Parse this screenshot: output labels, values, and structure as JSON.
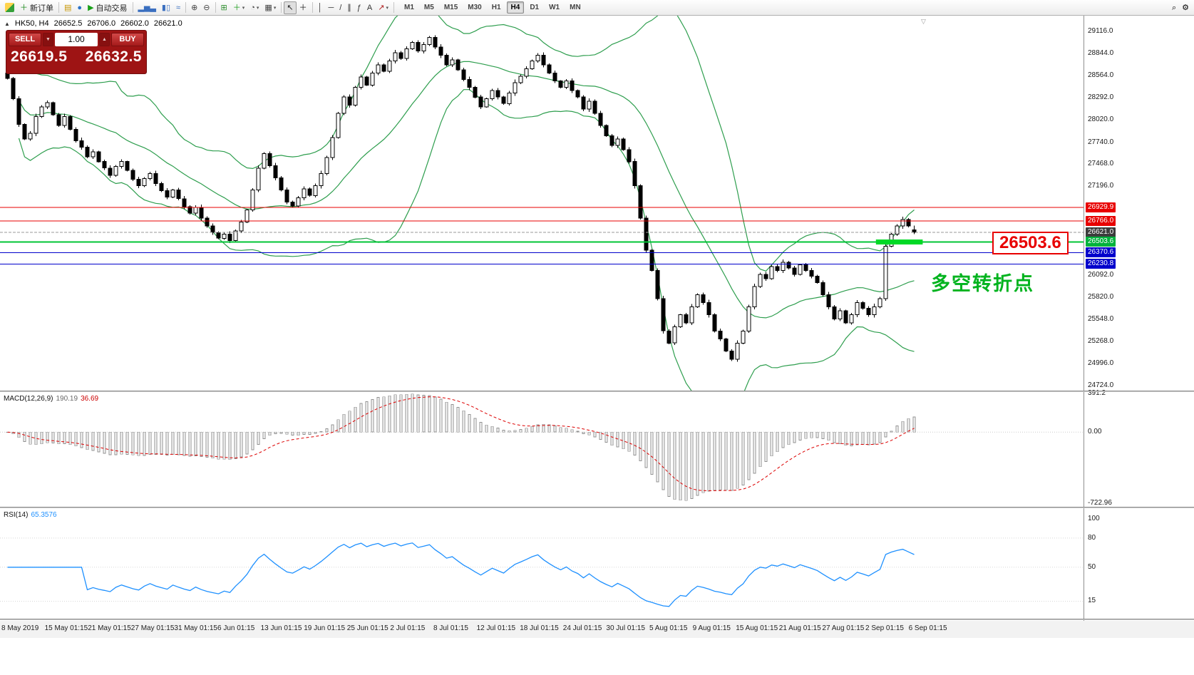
{
  "toolbar": {
    "items": [
      {
        "type": "logo",
        "name": "app-icon"
      },
      {
        "name": "new-order-button",
        "glyph": "＋",
        "color": "#1d8a1d",
        "label": "新订单"
      },
      {
        "type": "sep"
      },
      {
        "name": "metaeditor-icon",
        "glyph": "▤",
        "color": "#c89600"
      },
      {
        "name": "community-icon",
        "glyph": "●",
        "color": "#2a72c8"
      },
      {
        "name": "autotrading-button",
        "glyph": "▶",
        "color": "#18a018",
        "label": "自动交易"
      },
      {
        "type": "sep"
      },
      {
        "name": "bar-chart-icon",
        "glyph": "▂▅▃",
        "color": "#3a6fc0"
      },
      {
        "name": "candlestick-chart-icon",
        "glyph": "▮▯",
        "color": "#3a6fc0"
      },
      {
        "name": "line-chart-icon",
        "glyph": "≈",
        "color": "#3a6fc0"
      },
      {
        "type": "sep"
      },
      {
        "name": "zoom-in-icon",
        "glyph": "⊕",
        "color": "#444444"
      },
      {
        "name": "zoom-out-icon",
        "glyph": "⊖",
        "color": "#444444"
      },
      {
        "type": "sep"
      },
      {
        "name": "tile-windows-icon",
        "glyph": "⊞",
        "color": "#2f8f2f"
      },
      {
        "name": "indicators-button",
        "glyph": "＋",
        "color": "#1f9f1f",
        "caret": true
      },
      {
        "name": "periods-button",
        "glyph": "◔",
        "color": "#444444",
        "caret": true
      },
      {
        "name": "templates-button",
        "glyph": "▦",
        "color": "#444444",
        "caret": true
      },
      {
        "type": "sep"
      },
      {
        "name": "cursor-button",
        "glyph": "↖",
        "color": "#222222",
        "active": true
      },
      {
        "name": "crosshair-button",
        "glyph": "＋",
        "color": "#222222"
      },
      {
        "type": "sep"
      },
      {
        "name": "vertical-line-button",
        "glyph": "│",
        "color": "#333333"
      },
      {
        "name": "horizontal-line-button",
        "glyph": "─",
        "color": "#333333"
      },
      {
        "name": "trendline-button",
        "glyph": "/",
        "color": "#333333"
      },
      {
        "name": "channel-button",
        "glyph": "∥",
        "color": "#333333"
      },
      {
        "name": "fibonacci-button",
        "glyph": "ƒ",
        "color": "#333333"
      },
      {
        "name": "text-button",
        "glyph": "A",
        "color": "#333333"
      },
      {
        "name": "arrows-button",
        "glyph": "↗",
        "color": "#b22222",
        "caret": true
      },
      {
        "type": "sep"
      }
    ],
    "timeframes": [
      "M1",
      "M5",
      "M15",
      "M30",
      "H1",
      "H4",
      "D1",
      "W1",
      "MN"
    ],
    "active_timeframe": "H4",
    "right_items": [
      {
        "name": "search-icon",
        "glyph": "⌕"
      },
      {
        "name": "settings-icon",
        "glyph": "⚙"
      }
    ]
  },
  "icons": {
    "collapse_panel": "▲",
    "volume_down": "▼",
    "volume_up": "▲",
    "chart_shift": "▽"
  },
  "chart": {
    "symbol": "HK50, H4",
    "open": "26652.5",
    "high": "26706.0",
    "low": "26602.0",
    "close": "26621.0",
    "price_axis_labels": [
      {
        "text": "29116.0",
        "value": 29116.0
      },
      {
        "text": "28844.0",
        "value": 28844.0
      },
      {
        "text": "28564.0",
        "value": 28564.0
      },
      {
        "text": "28292.0",
        "value": 28292.0
      },
      {
        "text": "28020.0",
        "value": 28020.0
      },
      {
        "text": "27740.0",
        "value": 27740.0
      },
      {
        "text": "27468.0",
        "value": 27468.0
      },
      {
        "text": "27196.0",
        "value": 27196.0
      },
      {
        "text": "26092.0",
        "value": 26092.0
      },
      {
        "text": "25820.0",
        "value": 25820.0
      },
      {
        "text": "25548.0",
        "value": 25548.0
      },
      {
        "text": "25268.0",
        "value": 25268.0
      },
      {
        "text": "24996.0",
        "value": 24996.0
      },
      {
        "text": "24724.0",
        "value": 24724.0
      }
    ],
    "tags": [
      {
        "text": "26929.9",
        "value": 26929.9,
        "bg": "#e80000"
      },
      {
        "text": "26766.0",
        "value": 26766.0,
        "bg": "#e80000"
      },
      {
        "text": "26621.0",
        "value": 26621.0,
        "bg": "#3c3c3c"
      },
      {
        "text": "26503.6",
        "value": 26503.6,
        "bg": "#00b33c"
      },
      {
        "text": "26370.6",
        "value": 26370.6,
        "bg": "#0000cc"
      },
      {
        "text": "26230.8",
        "value": 26230.8,
        "bg": "#0000cc"
      }
    ],
    "levels": [
      {
        "name": "resistance-line-1",
        "value": 26929.9,
        "color": "#e80000",
        "style": "solid",
        "width": 1
      },
      {
        "name": "resistance-line-2",
        "value": 26766.0,
        "color": "#e80000",
        "style": "solid",
        "width": 1
      },
      {
        "name": "current-price-line",
        "value": 26621.0,
        "color": "#9a9a9a",
        "style": "dash",
        "width": 1
      },
      {
        "name": "key-level-line",
        "value": 26503.6,
        "color": "#00c435",
        "style": "solid",
        "width": 2
      },
      {
        "name": "support-line-1",
        "value": 26370.6,
        "color": "#0000cc",
        "style": "solid",
        "width": 1
      },
      {
        "name": "support-line-2",
        "value": 26230.8,
        "color": "#0000cc",
        "style": "solid",
        "width": 1
      }
    ]
  },
  "trade_panel": {
    "sell_label": "SELL",
    "buy_label": "BUY",
    "volume": "1.00",
    "sell_price": "26619.5",
    "buy_price": "26632.5"
  },
  "macd": {
    "header_name": "MACD(12,26,9)",
    "value_main": "190.19",
    "value_signal": "36.69",
    "axis_labels": [
      {
        "text": "391.2",
        "value": 391.2
      },
      {
        "text": "0.00",
        "value": 0
      },
      {
        "text": "-722.96",
        "value": -722.96
      }
    ]
  },
  "rsi": {
    "header_name": "RSI(14)",
    "value": "65.3576",
    "axis_labels": [
      {
        "text": "100",
        "value": 100
      },
      {
        "text": "80",
        "value": 80
      },
      {
        "text": "50",
        "value": 50
      },
      {
        "text": "15",
        "value": 15
      }
    ],
    "levels": [
      80,
      50,
      15
    ]
  },
  "annotations": {
    "level_label": "26503.6",
    "turning_point": "多空转折点",
    "highlight": {
      "value": 26503.6,
      "start_bar": 152.6,
      "end_bar": 160.8
    }
  },
  "colors": {
    "bollinger": "#2E9E4E",
    "candle_up": "#ffffff",
    "candle_down": "#000000",
    "highlight": "#00d926",
    "macd_signal": "#dd0000",
    "rsi_line": "#1e90ff"
  },
  "time_axis": {
    "labels": [
      "8 May 2019",
      "15 May 01:15",
      "21 May 01:15",
      "27 May 01:15",
      "31 May 01:15",
      "6 Jun 01:15",
      "13 Jun 01:15",
      "19 Jun 01:15",
      "25 Jun 01:15",
      "2 Jul 01:15",
      "8 Jul 01:15",
      "12 Jul 01:15",
      "18 Jul 01:15",
      "24 Jul 01:15",
      "30 Jul 01:15",
      "5 Aug 01:15",
      "9 Aug 01:15",
      "15 Aug 01:15",
      "21 Aug 01:15",
      "27 Aug 01:15",
      "2 Sep 01:15",
      "6 Sep 01:15"
    ]
  },
  "chart_data": {
    "type": "candlestick",
    "symbol": "HK50",
    "timeframe": "H4",
    "first_open": 28600,
    "closes": [
      28530,
      28280,
      27960,
      27780,
      27850,
      28060,
      28180,
      28230,
      28080,
      27950,
      28060,
      27900,
      27760,
      27680,
      27560,
      27620,
      27500,
      27420,
      27330,
      27440,
      27500,
      27390,
      27280,
      27200,
      27290,
      27350,
      27230,
      27140,
      27060,
      27150,
      27040,
      26940,
      26860,
      26930,
      26800,
      26700,
      26620,
      26550,
      26600,
      26520,
      26640,
      26750,
      26900,
      27150,
      27420,
      27600,
      27450,
      27300,
      27150,
      27000,
      26950,
      27050,
      27160,
      27080,
      27200,
      27350,
      27550,
      27800,
      28100,
      28300,
      28200,
      28420,
      28550,
      28450,
      28600,
      28700,
      28620,
      28750,
      28850,
      28780,
      28900,
      28980,
      28870,
      28950,
      29040,
      28920,
      28820,
      28700,
      28760,
      28640,
      28520,
      28420,
      28300,
      28180,
      28280,
      28380,
      28300,
      28220,
      28350,
      28480,
      28560,
      28650,
      28750,
      28820,
      28700,
      28600,
      28500,
      28420,
      28500,
      28380,
      28300,
      28150,
      28250,
      28100,
      27950,
      27820,
      27700,
      27780,
      27650,
      27500,
      27200,
      26800,
      26400,
      26150,
      25800,
      25400,
      25250,
      25450,
      25600,
      25500,
      25700,
      25850,
      25750,
      25600,
      25400,
      25300,
      25150,
      25050,
      25250,
      25400,
      25700,
      25950,
      26100,
      26050,
      26200,
      26150,
      26250,
      26180,
      26100,
      26220,
      26150,
      26080,
      26000,
      25850,
      25700,
      25550,
      25650,
      25500,
      25600,
      25750,
      25680,
      25600,
      25700,
      25800,
      26450,
      26600,
      26700,
      26780,
      26700,
      26621
    ],
    "last_candle": {
      "o": 26652.5,
      "h": 26706.0,
      "l": 26602.0,
      "c": 26621.0
    },
    "bollinger": {
      "period": 20,
      "deviation": 2
    },
    "macd": {
      "fast": 12,
      "slow": 26,
      "signal": 9
    },
    "rsi": {
      "period": 14
    }
  }
}
